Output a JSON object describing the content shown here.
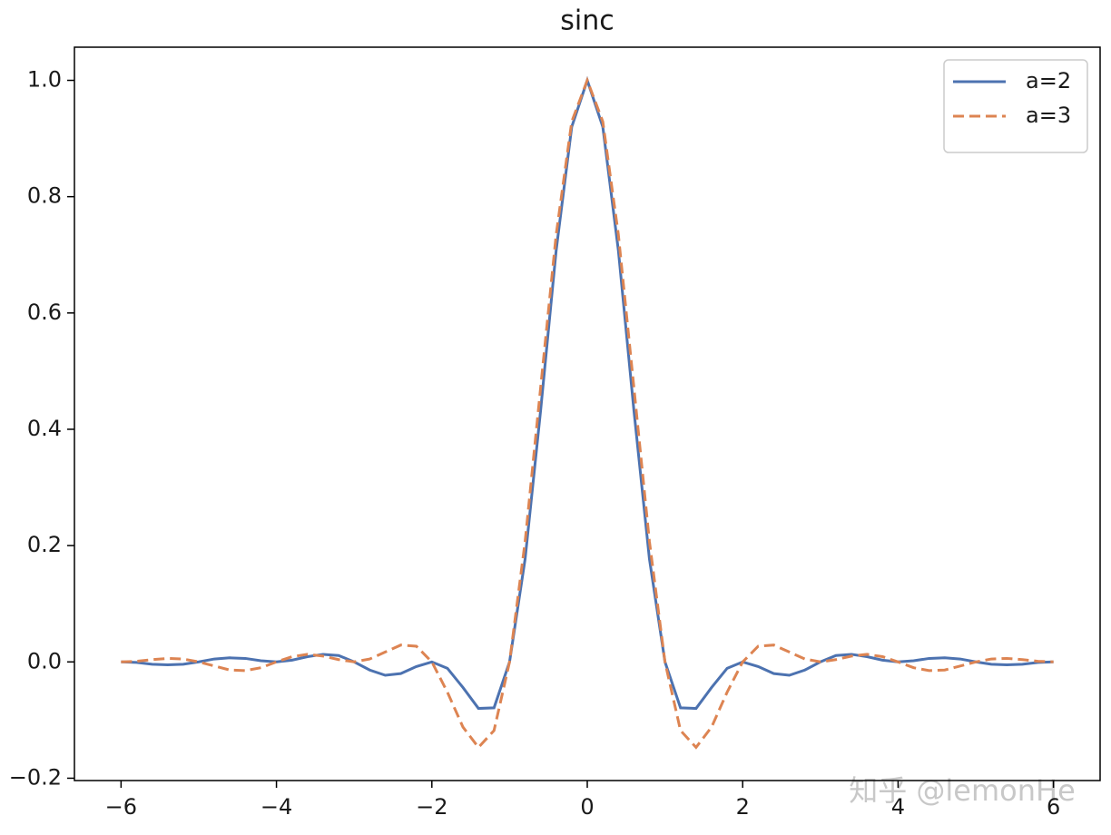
{
  "chart_data": {
    "type": "line",
    "title": "sinc",
    "x": [
      -6,
      -5.8,
      -5.6,
      -5.4,
      -5.2,
      -5,
      -4.8,
      -4.6,
      -4.4,
      -4.2,
      -4,
      -3.8,
      -3.6,
      -3.4,
      -3.2,
      -3,
      -2.8,
      -2.6,
      -2.4,
      -2.2,
      -2,
      -1.8,
      -1.6,
      -1.4,
      -1.2,
      -1,
      -0.8,
      -0.6,
      -0.4,
      -0.2,
      0,
      0.2,
      0.4,
      0.6,
      0.8,
      1,
      1.2,
      1.4,
      1.6,
      1.8,
      2,
      2.2,
      2.4,
      2.6,
      2.8,
      3,
      3.2,
      3.4,
      3.6,
      3.8,
      4,
      4.2,
      4.4,
      4.6,
      4.8,
      5,
      5.2,
      5.4,
      5.6,
      5.8,
      6
    ],
    "series": [
      {
        "name": "a=2",
        "color": "#4c72b0",
        "dash": "solid",
        "values": [
          0,
          -0.001,
          -0.004,
          -0.005,
          -0.004,
          0,
          0.005,
          0.007,
          0.006,
          0.002,
          0,
          0.003,
          0.009,
          0.013,
          0.011,
          0,
          -0.014,
          -0.023,
          -0.02,
          -0.008,
          0,
          -0.011,
          -0.044,
          -0.08,
          -0.079,
          0,
          0.177,
          0.433,
          0.708,
          0.92,
          1,
          0.92,
          0.708,
          0.433,
          0.177,
          0,
          -0.079,
          -0.08,
          -0.044,
          -0.011,
          0,
          -0.008,
          -0.02,
          -0.023,
          -0.014,
          0,
          0.011,
          0.013,
          0.009,
          0.003,
          0,
          0.002,
          0.006,
          0.007,
          0.005,
          0,
          -0.004,
          -0.005,
          -0.004,
          -0.001,
          0
        ]
      },
      {
        "name": "a=3",
        "color": "#dd8452",
        "dash": "dashed",
        "values": [
          0,
          0.001,
          0.004,
          0.006,
          0.005,
          0,
          -0.007,
          -0.014,
          -0.015,
          -0.01,
          0,
          0.009,
          0.013,
          0.01,
          0.004,
          0,
          0.005,
          0.017,
          0.029,
          0.027,
          0,
          -0.052,
          -0.112,
          -0.147,
          -0.118,
          0,
          0.207,
          0.472,
          0.735,
          0.929,
          1,
          0.929,
          0.735,
          0.472,
          0.207,
          0,
          -0.118,
          -0.147,
          -0.112,
          -0.052,
          0,
          0.027,
          0.029,
          0.017,
          0.005,
          0,
          0.004,
          0.01,
          0.013,
          0.009,
          0,
          -0.01,
          -0.015,
          -0.014,
          -0.007,
          0,
          0.005,
          0.006,
          0.004,
          0.001,
          0
        ]
      }
    ],
    "xlim": [
      -6.6,
      6.6
    ],
    "ylim": [
      -0.204,
      1.057
    ],
    "xticks": [
      {
        "value": -6,
        "label": "−6"
      },
      {
        "value": -4,
        "label": "−4"
      },
      {
        "value": -2,
        "label": "−2"
      },
      0,
      2,
      4,
      6
    ],
    "yticks": [
      {
        "value": -0.2,
        "label": "−0.2"
      },
      {
        "value": 0,
        "label": "0.0"
      },
      0.2,
      0.4,
      0.6,
      0.8,
      {
        "value": 1,
        "label": "1.0"
      }
    ],
    "legend": "upper right",
    "grid": false,
    "watermark": "知乎 @lemonHe"
  }
}
